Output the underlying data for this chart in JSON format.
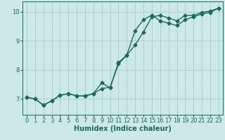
{
  "xlabel": "Humidex (Indice chaleur)",
  "bg_color": "#cce8e8",
  "grid_color": "#aacccc",
  "line_color": "#1a6b5a",
  "xlim": [
    -0.5,
    23.5
  ],
  "ylim": [
    6.45,
    10.35
  ],
  "xticks": [
    0,
    1,
    2,
    3,
    4,
    5,
    6,
    7,
    8,
    9,
    10,
    11,
    12,
    13,
    14,
    15,
    16,
    17,
    18,
    19,
    20,
    21,
    22,
    23
  ],
  "yticks": [
    7,
    8,
    9,
    10
  ],
  "line1_x": [
    0,
    1,
    2,
    3,
    4,
    5,
    6,
    7,
    8,
    9,
    10,
    11,
    12,
    13,
    14,
    15,
    16,
    17,
    18,
    19,
    20,
    21,
    22,
    23
  ],
  "line1_y": [
    7.05,
    7.0,
    6.78,
    6.93,
    7.12,
    7.18,
    7.1,
    7.1,
    7.18,
    7.55,
    7.38,
    8.25,
    8.5,
    9.35,
    9.72,
    9.88,
    9.68,
    9.6,
    9.52,
    9.72,
    9.82,
    9.92,
    9.97,
    10.12
  ],
  "line2_x": [
    0,
    1,
    2,
    3,
    4,
    5,
    6,
    7,
    8,
    9,
    10,
    11,
    12,
    13,
    14,
    15,
    16,
    17,
    18,
    19,
    20,
    21,
    22,
    23
  ],
  "line2_y": [
    7.05,
    7.0,
    6.78,
    6.93,
    7.12,
    7.18,
    7.1,
    7.1,
    7.18,
    7.35,
    7.4,
    8.2,
    8.5,
    8.85,
    9.3,
    9.82,
    9.87,
    9.78,
    9.68,
    9.87,
    9.87,
    9.97,
    10.02,
    10.12
  ],
  "marker_size": 2.5,
  "line_width": 1.0,
  "xlabel_fontsize": 7,
  "tick_fontsize": 6
}
